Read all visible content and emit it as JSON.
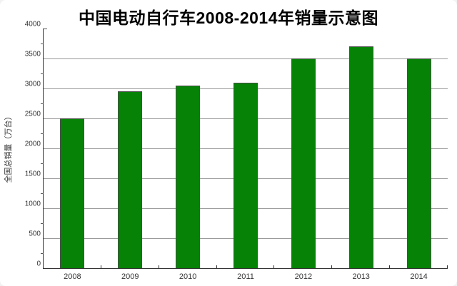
{
  "title": "中国电动自行车2008-2014年销量示意图",
  "chart_data": {
    "type": "bar",
    "title": "中国电动自行车2008-2014年销量示意图",
    "categories": [
      "2008",
      "2009",
      "2010",
      "2011",
      "2012",
      "2013",
      "2014"
    ],
    "values": [
      2500,
      2950,
      3050,
      3100,
      3500,
      3700,
      3500
    ],
    "xlabel": "",
    "ylabel": "全国总销量（万台）",
    "ylim": [
      0,
      4000
    ],
    "ytick_interval": 500,
    "ytick_labels": [
      "0",
      "500",
      "1000",
      "1500",
      "2000",
      "2500",
      "3000",
      "3500",
      "4000"
    ],
    "y_minor_tick_interval": 250,
    "grid": "horizontal-major",
    "legend": "none",
    "colors": {
      "bar_fill": "#068206",
      "bar_border": "#4d4d4d",
      "gridline": "#999999",
      "axis": "#333333",
      "text": "#333333",
      "title_text": "#000000",
      "background": "#ffffff"
    }
  }
}
